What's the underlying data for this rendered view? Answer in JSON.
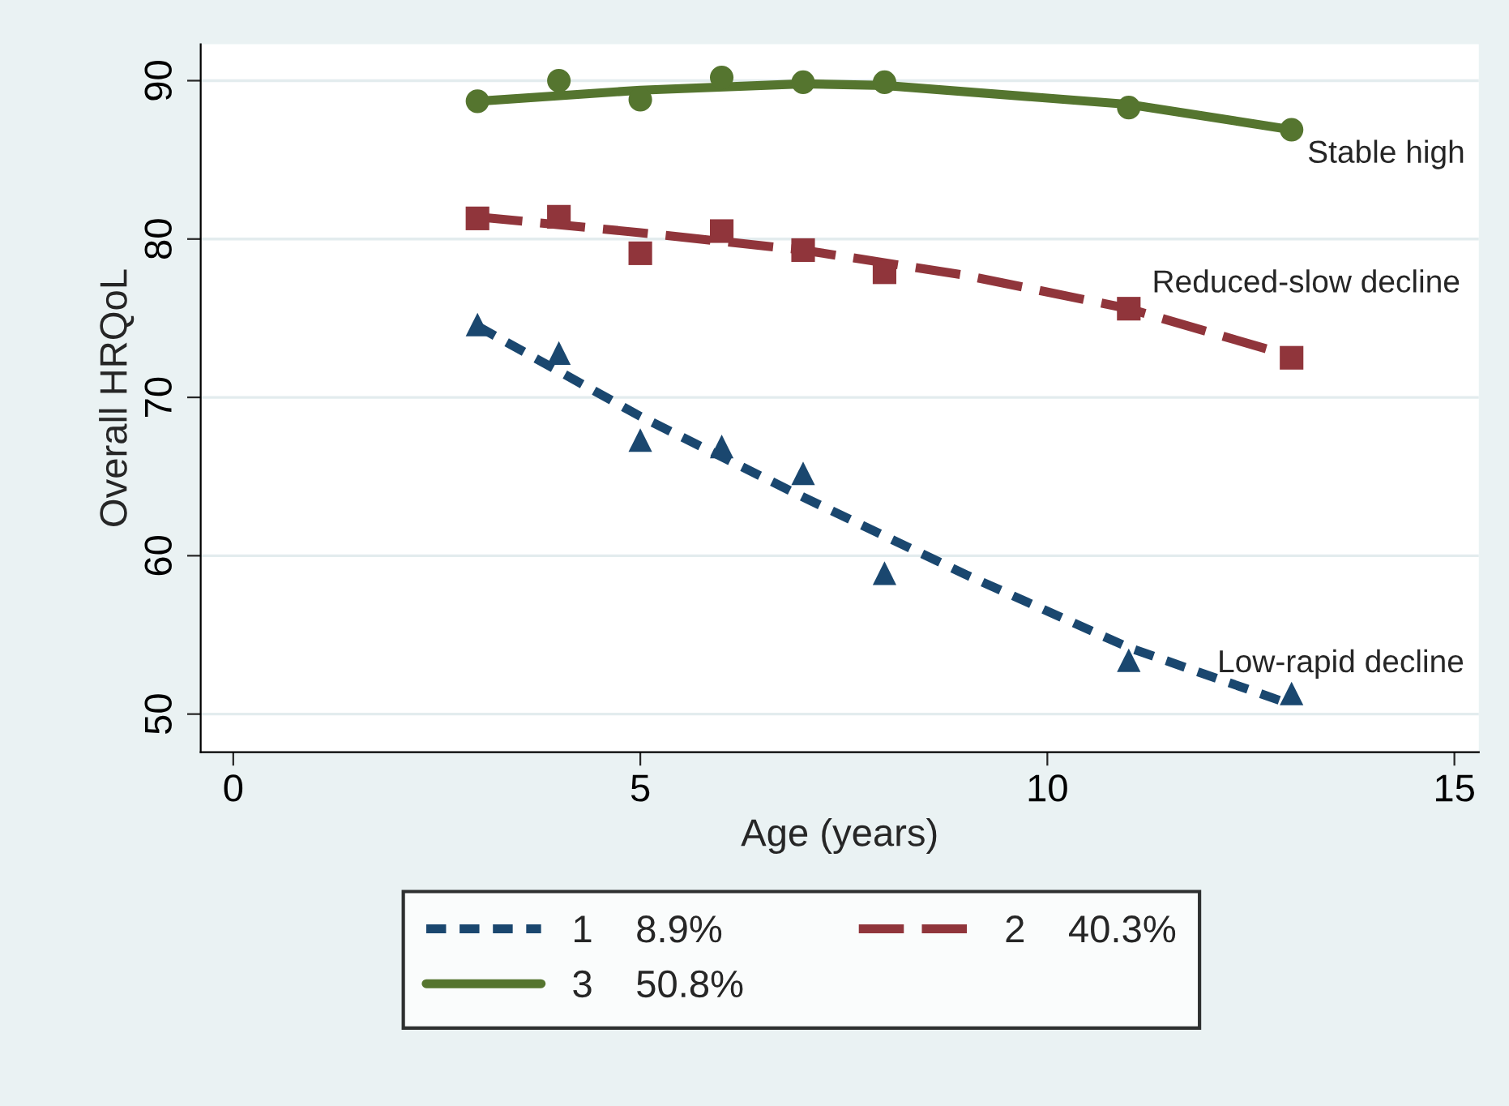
{
  "chart_data": {
    "type": "line",
    "xlabel": "Age (years)",
    "ylabel": "Overall HRQoL",
    "xlim": [
      -0.4,
      15.3
    ],
    "ylim": [
      47.6,
      92.3
    ],
    "xticks": [
      0,
      5,
      10,
      15
    ],
    "yticks": [
      50,
      60,
      70,
      80,
      90
    ],
    "grid": "y",
    "legend": "bottom",
    "series": [
      {
        "type": "scatter",
        "marker": "triangle",
        "color": "#1a476f",
        "x": [
          3,
          4,
          5,
          6,
          7,
          8,
          11,
          13
        ],
        "values": [
          74.6,
          72.8,
          67.3,
          66.9,
          65.2,
          58.9,
          53.4,
          51.3
        ]
      },
      {
        "type": "scatter",
        "marker": "square",
        "color": "#90353b",
        "x": [
          3,
          4,
          5,
          6,
          7,
          8,
          11,
          13
        ],
        "values": [
          81.3,
          81.4,
          79.1,
          80.5,
          79.3,
          77.9,
          75.6,
          72.5
        ]
      },
      {
        "type": "scatter",
        "marker": "circle",
        "color": "#55752f",
        "x": [
          3,
          4,
          5,
          6,
          7,
          8,
          11,
          13
        ],
        "values": [
          88.7,
          90.0,
          88.8,
          90.2,
          89.9,
          89.9,
          88.3,
          86.9
        ]
      },
      {
        "name": "1    8.9%",
        "line_style": "dotted",
        "color": "#1a476f",
        "x": [
          3,
          5,
          7,
          9,
          11,
          13
        ],
        "values": [
          74.5,
          68.8,
          63.7,
          58.8,
          54.2,
          50.6
        ]
      },
      {
        "name": "2    40.3%",
        "line_style": "dashed",
        "color": "#90353b",
        "x": [
          3,
          5,
          7,
          9,
          11,
          13
        ],
        "values": [
          81.4,
          80.4,
          79.3,
          77.7,
          75.6,
          72.6
        ]
      },
      {
        "name": "3    50.8%",
        "line_style": "solid",
        "color": "#55752f",
        "x": [
          3,
          5,
          7,
          8,
          11,
          13
        ],
        "values": [
          88.7,
          89.4,
          89.8,
          89.7,
          88.5,
          86.9
        ]
      }
    ],
    "annotations": [
      "Low-rapid decline",
      "Reduced-slow decline",
      "Stable high"
    ]
  }
}
